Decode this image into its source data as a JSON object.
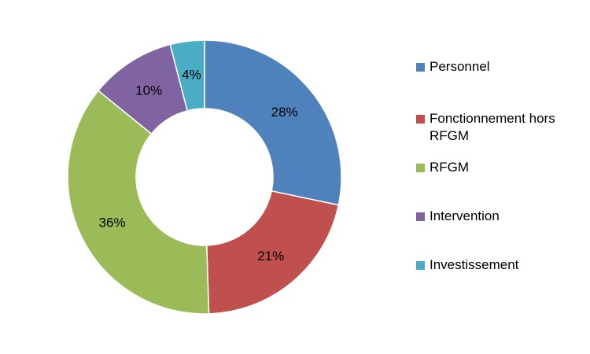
{
  "chart_data": {
    "type": "pie",
    "variant": "donut",
    "title": "",
    "categories": [
      "Personnel",
      "Fonctionnement hors RFGM",
      "RFGM",
      "Intervention",
      "Investissement"
    ],
    "values": [
      28,
      21,
      36,
      10,
      4
    ],
    "data_labels": [
      "28%",
      "21%",
      "36%",
      "10%",
      "4%"
    ],
    "colors": [
      "#4F81BD",
      "#C0504D",
      "#9BBB59",
      "#8064A2",
      "#4BACC6"
    ],
    "legend_position": "right",
    "start_angle": "12 o'clock",
    "direction": "clockwise"
  },
  "legend": {
    "items": [
      {
        "label": "Personnel",
        "color": "#4F81BD"
      },
      {
        "label": "Fonctionnement hors RFGM",
        "color": "#C0504D"
      },
      {
        "label": "RFGM",
        "color": "#9BBB59"
      },
      {
        "label": "Intervention",
        "color": "#8064A2"
      },
      {
        "label": "Investissement",
        "color": "#4BACC6"
      }
    ]
  }
}
